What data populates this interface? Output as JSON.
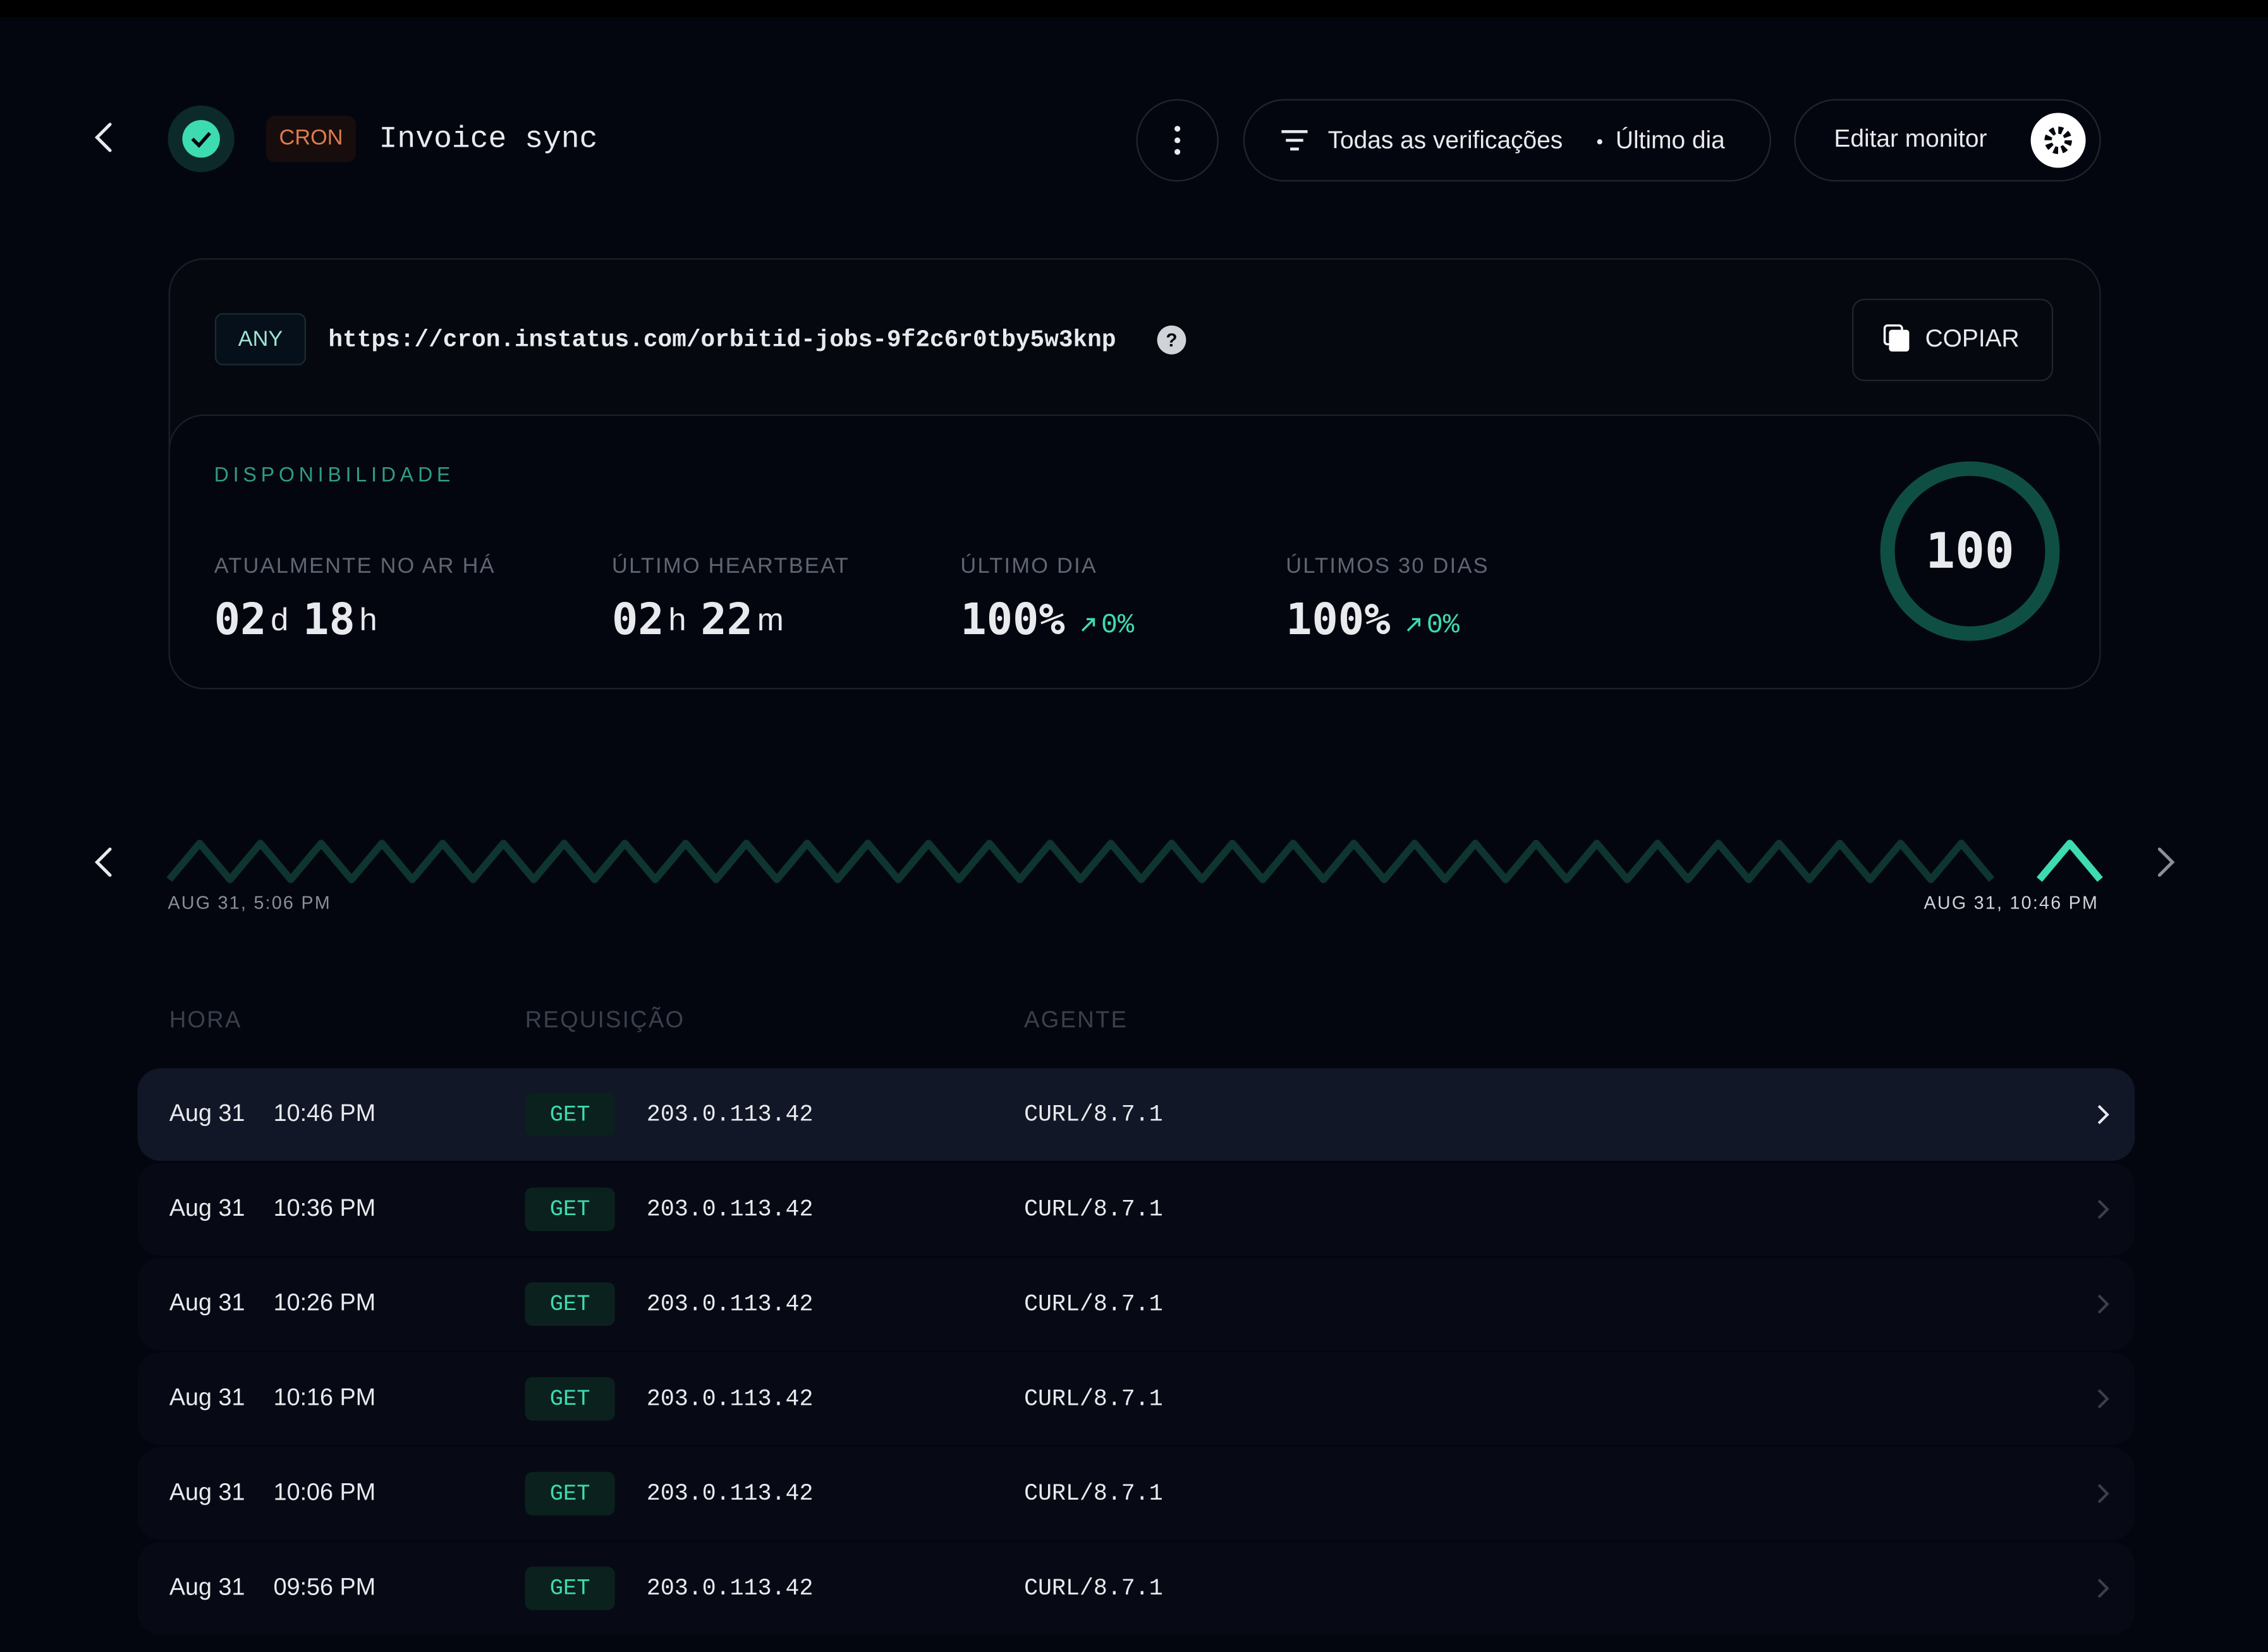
{
  "header": {
    "badge": "CRON",
    "title": "Invoice sync",
    "filter": "Todas as verificações",
    "period": "Último dia",
    "edit_button": "Editar monitor"
  },
  "endpoint": {
    "method": "ANY",
    "url": "https://cron.instatus.com/orbitid-jobs-9f2c6r0tby5w3knp",
    "copy_button": "COPIAR"
  },
  "availability": {
    "title": "DISPONIBILIDADE",
    "score": "100",
    "stats": [
      {
        "label": "ATUALMENTE NO AR HÁ",
        "parts": [
          {
            "value": "02",
            "unit": "d"
          },
          {
            "value": "18",
            "unit": "h"
          }
        ]
      },
      {
        "label": "ÚLTIMO HEARTBEAT",
        "parts": [
          {
            "value": "02",
            "unit": "h"
          },
          {
            "value": "22",
            "unit": "m"
          }
        ]
      },
      {
        "label": "ÚLTIMO DIA",
        "parts": [
          {
            "value": "100%"
          }
        ],
        "change": "0%"
      },
      {
        "label": "ÚLTIMOS 30 DIAS",
        "parts": [
          {
            "value": "100%"
          }
        ],
        "change": "0%"
      }
    ]
  },
  "timeline": {
    "start": "AUG 31, 5:06 PM",
    "end": "AUG 31, 10:46 PM"
  },
  "table": {
    "headers": [
      "HORA",
      "REQUISIÇÃO",
      "AGENTE"
    ],
    "rows": [
      [
        "Aug 31",
        "10:46 PM",
        "GET",
        "203.0.113.42",
        "CURL/8.7.1"
      ],
      [
        "Aug 31",
        "10:36 PM",
        "GET",
        "203.0.113.42",
        "CURL/8.7.1"
      ],
      [
        "Aug 31",
        "10:26 PM",
        "GET",
        "203.0.113.42",
        "CURL/8.7.1"
      ],
      [
        "Aug 31",
        "10:16 PM",
        "GET",
        "203.0.113.42",
        "CURL/8.7.1"
      ],
      [
        "Aug 31",
        "10:06 PM",
        "GET",
        "203.0.113.42",
        "CURL/8.7.1"
      ],
      [
        "Aug 31",
        "09:56 PM",
        "GET",
        "203.0.113.42",
        "CURL/8.7.1"
      ]
    ]
  }
}
